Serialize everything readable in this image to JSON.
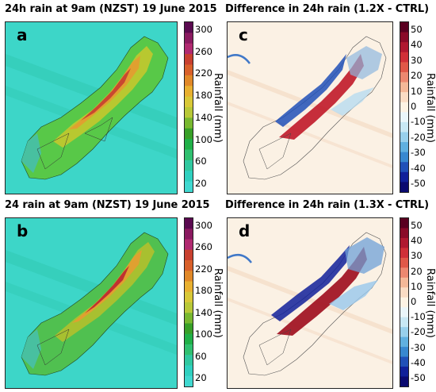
{
  "panels": [
    {
      "id": "a",
      "title": "24h rain at 9am (NZST) 19 June 2015",
      "label": "a",
      "colorbar": {
        "label": "Rainfall (mm)",
        "ticks": [
          "300",
          "260",
          "220",
          "180",
          "140",
          "100",
          "60",
          "20"
        ],
        "colors": [
          "#5a0a50",
          "#8a1a60",
          "#b02a70",
          "#c8402f",
          "#d8602a",
          "#e08828",
          "#e8b030",
          "#d8c838",
          "#b8c838",
          "#78b830",
          "#38a028",
          "#20b048",
          "#30c070",
          "#30c8a0",
          "#30d0c0",
          "#40d8d0"
        ]
      }
    },
    {
      "id": "c",
      "title": "Difference in 24h rain (1.2X - CTRL)",
      "label": "c",
      "colorbar": {
        "label": "Rainfall (mm)",
        "ticks": [
          "50",
          "40",
          "30",
          "20",
          "10",
          "0",
          "-10",
          "-20",
          "-30",
          "-40",
          "-50"
        ],
        "colors": [
          "#5a0020",
          "#8a0a28",
          "#b01830",
          "#d03038",
          "#e05848",
          "#ec8870",
          "#f4b898",
          "#fadcc4",
          "#fdf3e4",
          "#eaf6fa",
          "#c8e8f4",
          "#98d0ec",
          "#60b0e0",
          "#3888d0",
          "#2050b8",
          "#10209a",
          "#0a0a70"
        ]
      }
    },
    {
      "id": "b",
      "title": "24 rain at 9am (NZST) 19 June 2015",
      "label": "b",
      "colorbar": {
        "label": "Rainfall (mm)",
        "ticks": [
          "300",
          "260",
          "220",
          "180",
          "140",
          "100",
          "60",
          "20"
        ],
        "colors": [
          "#5a0a50",
          "#8a1a60",
          "#b02a70",
          "#c8402f",
          "#d8602a",
          "#e08828",
          "#e8b030",
          "#d8c838",
          "#b8c838",
          "#78b830",
          "#38a028",
          "#20b048",
          "#30c070",
          "#30c8a0",
          "#30d0c0",
          "#40d8d0"
        ]
      }
    },
    {
      "id": "d",
      "title": "Difference in 24h rain (1.3X - CTRL)",
      "label": "d",
      "colorbar": {
        "label": "Rainfall (mm)",
        "ticks": [
          "50",
          "40",
          "30",
          "20",
          "10",
          "0",
          "-10",
          "-20",
          "-30",
          "-40",
          "-50"
        ],
        "colors": [
          "#5a0020",
          "#8a0a28",
          "#b01830",
          "#d03038",
          "#e05848",
          "#ec8870",
          "#f4b898",
          "#fadcc4",
          "#fdf3e4",
          "#eaf6fa",
          "#c8e8f4",
          "#98d0ec",
          "#60b0e0",
          "#3888d0",
          "#2050b8",
          "#10209a",
          "#0a0a70"
        ]
      }
    }
  ],
  "map_colors": {
    "rain_background": "#3dd6c8",
    "rain_low": "#40c060",
    "rain_mid": "#a8c030",
    "rain_high": "#e0a030",
    "rain_peak": "#c03030",
    "diff_background": "#fbf1e4",
    "diff_positive": "#c01828",
    "diff_negative": "#2048b8"
  }
}
